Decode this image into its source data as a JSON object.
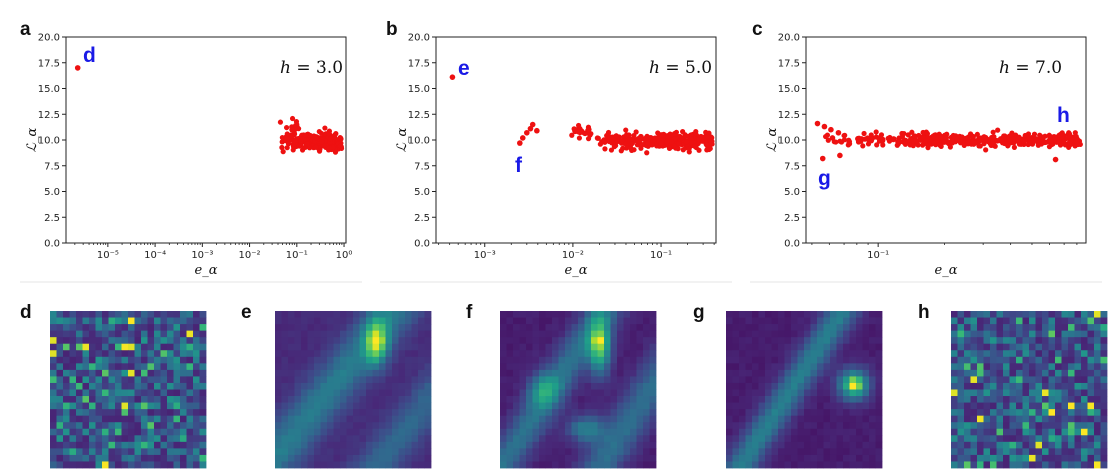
{
  "figure_panels": [
    "a",
    "b",
    "c",
    "d",
    "e",
    "f",
    "g",
    "h"
  ],
  "chart_data": [
    {
      "type": "scatter",
      "panel": "a",
      "xlabel": "e_α",
      "ylabel": "ℒ_α",
      "x_scale": "log",
      "xlim": [
        1.3e-06,
        1.1
      ],
      "ylim": [
        0,
        20
      ],
      "yticks": [
        "0.0",
        "2.5",
        "5.0",
        "7.5",
        "10.0",
        "12.5",
        "15.0",
        "17.5",
        "20.0"
      ],
      "xtick_powers": [
        -5,
        -4,
        -3,
        -2,
        -1,
        0
      ],
      "h_label": "h = 3.0",
      "h_value": "3.0",
      "color": "#ee1111",
      "annotation": {
        "label": "d",
        "x": 2.3e-06,
        "y": 17.0,
        "color": "#1a1ae6"
      },
      "points": [
        [
          2.3e-06,
          17.0
        ]
      ],
      "clusters": [
        {
          "x_min": 0.04,
          "x_max": 0.9,
          "y_mean": 9.9,
          "y_sd": 0.42,
          "count": 230
        },
        {
          "x_min": 0.04,
          "x_max": 0.12,
          "y_mean": 11.0,
          "y_sd": 0.55,
          "count": 12
        }
      ]
    },
    {
      "type": "scatter",
      "panel": "b",
      "xlabel": "e_α",
      "ylabel": "ℒ_α",
      "x_scale": "log",
      "xlim": [
        0.00028,
        0.42
      ],
      "ylim": [
        0,
        20
      ],
      "yticks": [
        "0.0",
        "2.5",
        "5.0",
        "7.5",
        "10.0",
        "12.5",
        "15.0",
        "17.5",
        "20.0"
      ],
      "xtick_powers": [
        -3,
        -2,
        -1
      ],
      "h_label": "h = 5.0",
      "h_value": "5.0",
      "color": "#ee1111",
      "annotation": {
        "label": "e",
        "x": 0.00043,
        "y": 16.1,
        "color": "#1a1ae6"
      },
      "annotation2": {
        "label": "f",
        "x": 0.0025,
        "y": 9.7,
        "color": "#1a1ae6"
      },
      "points": [
        [
          0.00043,
          16.1
        ],
        [
          0.0025,
          9.7
        ],
        [
          0.0027,
          10.2
        ],
        [
          0.003,
          10.7
        ],
        [
          0.0033,
          11.1
        ],
        [
          0.0035,
          11.5
        ],
        [
          0.0039,
          10.9
        ]
      ],
      "clusters": [
        {
          "x_min": 0.009,
          "x_max": 0.016,
          "y_mean": 10.7,
          "y_sd": 0.45,
          "count": 22
        },
        {
          "x_min": 0.018,
          "x_max": 0.38,
          "y_mean": 9.9,
          "y_sd": 0.38,
          "count": 330
        }
      ]
    },
    {
      "type": "scatter",
      "panel": "c",
      "xlabel": "e_α",
      "ylabel": "ℒ_α",
      "x_scale": "log",
      "xlim": [
        0.047,
        0.88
      ],
      "ylim": [
        0,
        20
      ],
      "yticks": [
        "0.0",
        "2.5",
        "5.0",
        "7.5",
        "10.0",
        "12.5",
        "15.0",
        "17.5",
        "20.0"
      ],
      "xtick_powers": [
        -1
      ],
      "h_label": "h = 7.0",
      "h_value": "7.0",
      "color": "#ee1111",
      "annotation": {
        "label": "g",
        "x": 0.056,
        "y": 8.2,
        "color": "#1a1ae6"
      },
      "annotation2": {
        "label": "h",
        "x": 0.72,
        "y": 10.1,
        "color": "#1a1ae6"
      },
      "points": [
        [
          0.056,
          8.2
        ],
        [
          0.053,
          11.6
        ],
        [
          0.057,
          11.3
        ],
        [
          0.061,
          11.0
        ],
        [
          0.066,
          10.7
        ],
        [
          0.062,
          10.2
        ],
        [
          0.067,
          8.5
        ],
        [
          0.64,
          8.1
        ]
      ],
      "clusters": [
        {
          "x_min": 0.055,
          "x_max": 0.83,
          "y_mean": 10.0,
          "y_sd": 0.32,
          "count": 420
        }
      ]
    },
    {
      "type": "heatmap",
      "panel": "d",
      "rows": 24,
      "cols": 24,
      "pattern": "noise",
      "colormap": "viridis"
    },
    {
      "type": "heatmap",
      "panel": "e",
      "rows": 24,
      "cols": 24,
      "pattern": "blob",
      "colormap": "viridis"
    },
    {
      "type": "heatmap",
      "panel": "f",
      "rows": 24,
      "cols": 24,
      "pattern": "blob",
      "colormap": "viridis"
    },
    {
      "type": "heatmap",
      "panel": "g",
      "rows": 24,
      "cols": 24,
      "pattern": "blob",
      "colormap": "viridis"
    },
    {
      "type": "heatmap",
      "panel": "h",
      "rows": 24,
      "cols": 24,
      "pattern": "noise",
      "colormap": "viridis"
    }
  ]
}
